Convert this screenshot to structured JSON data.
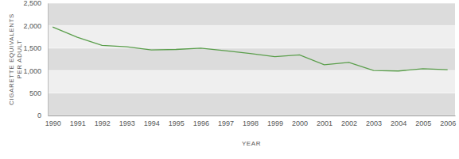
{
  "chart_data": {
    "type": "line",
    "x_label": "YEAR",
    "y_label": [
      "CIGARETTE EQUIVALENTS",
      "PER ADULT"
    ],
    "x": [
      1990,
      1991,
      1992,
      1993,
      1994,
      1995,
      1996,
      1997,
      1998,
      1999,
      2000,
      2001,
      2002,
      2003,
      2004,
      2005,
      2006
    ],
    "values": [
      1970,
      1740,
      1560,
      1530,
      1460,
      1470,
      1500,
      1440,
      1380,
      1310,
      1350,
      1130,
      1180,
      1000,
      990,
      1040,
      1020
    ],
    "color": "#5a9e4b",
    "xlim": [
      1989.8,
      2006.3
    ],
    "xticks": [
      1990,
      1991,
      1992,
      1993,
      1994,
      1995,
      1996,
      1997,
      1998,
      1999,
      2000,
      2001,
      2002,
      2003,
      2004,
      2005,
      2006
    ],
    "ylim": [
      0,
      2500
    ],
    "yticks": [
      0,
      500,
      {
        "value": 1000,
        "label": "1,000"
      },
      {
        "value": 1500,
        "label": "1,500"
      },
      {
        "value": 2000,
        "label": "2,000"
      },
      {
        "value": 2500,
        "label": "2,500"
      }
    ],
    "grid": true
  }
}
